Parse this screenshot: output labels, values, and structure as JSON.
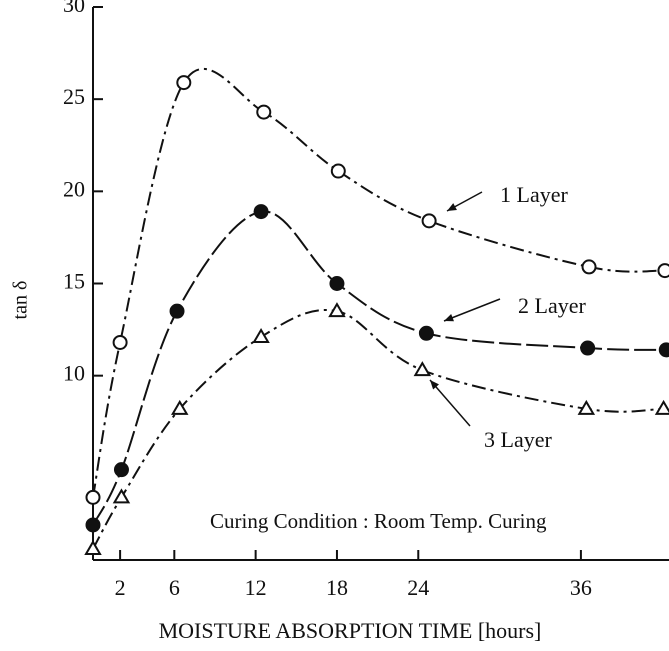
{
  "chart_data": {
    "type": "line",
    "xlabel": "MOISTURE ABSORPTION TIME [hours]",
    "ylabel": "tan δ",
    "annotation": "Curing Condition : Room Temp. Curing",
    "xlim": [
      0,
      42.5
    ],
    "ylim": [
      0,
      30
    ],
    "xticks": [
      2,
      6,
      12,
      18,
      24,
      36
    ],
    "yticks": [
      10,
      15,
      20,
      25,
      30
    ],
    "series": [
      {
        "name": "1 Layer",
        "color": "#111111",
        "marker": "open-circle",
        "x": [
          0,
          2,
          6.7,
          12.6,
          18.1,
          24.8,
          36.6,
          42.2
        ],
        "values": [
          3.4,
          11.8,
          25.9,
          24.3,
          21.1,
          18.4,
          15.9,
          15.7
        ]
      },
      {
        "name": "2 Layer",
        "color": "#111111",
        "marker": "filled-circle",
        "x": [
          0,
          2.1,
          6.2,
          12.4,
          18,
          24.6,
          36.5,
          42.3
        ],
        "values": [
          1.9,
          4.9,
          13.5,
          18.9,
          15.0,
          12.3,
          11.5,
          11.4
        ]
      },
      {
        "name": "3 Layer",
        "color": "#111111",
        "marker": "open-triangle",
        "x": [
          0,
          2.1,
          6.4,
          12.4,
          18,
          24.3,
          36.4,
          42.1
        ],
        "values": [
          0.6,
          3.4,
          8.2,
          12.1,
          13.5,
          10.3,
          8.2,
          8.2
        ]
      }
    ]
  }
}
